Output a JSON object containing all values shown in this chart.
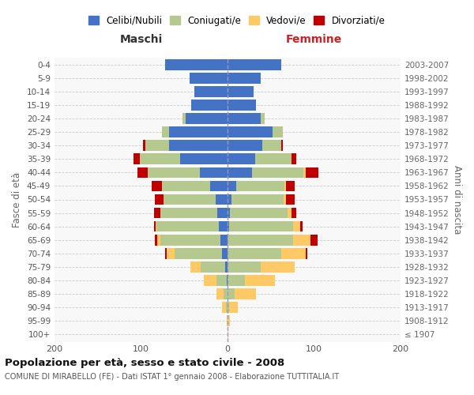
{
  "age_groups": [
    "100+",
    "95-99",
    "90-94",
    "85-89",
    "80-84",
    "75-79",
    "70-74",
    "65-69",
    "60-64",
    "55-59",
    "50-54",
    "45-49",
    "40-44",
    "35-39",
    "30-34",
    "25-29",
    "20-24",
    "15-19",
    "10-14",
    "5-9",
    "0-4"
  ],
  "birth_years": [
    "≤ 1907",
    "1908-1912",
    "1913-1917",
    "1918-1922",
    "1923-1927",
    "1928-1932",
    "1933-1937",
    "1938-1942",
    "1943-1947",
    "1948-1952",
    "1953-1957",
    "1958-1962",
    "1963-1967",
    "1968-1972",
    "1973-1977",
    "1978-1982",
    "1983-1987",
    "1988-1992",
    "1993-1997",
    "1998-2002",
    "2003-2007"
  ],
  "colors": {
    "celibe": "#4472c4",
    "coniugato": "#b5c98e",
    "vedovo": "#ffc966",
    "divorziato": "#c00000"
  },
  "males": {
    "celibe": [
      0,
      0,
      0,
      0,
      1,
      3,
      6,
      8,
      10,
      12,
      14,
      20,
      32,
      55,
      68,
      68,
      48,
      42,
      38,
      44,
      72
    ],
    "coniugato": [
      0,
      0,
      2,
      5,
      12,
      28,
      55,
      70,
      72,
      66,
      60,
      56,
      60,
      46,
      27,
      8,
      4,
      0,
      0,
      0,
      0
    ],
    "vedovo": [
      0,
      1,
      4,
      8,
      14,
      12,
      9,
      3,
      1,
      0,
      0,
      0,
      0,
      0,
      0,
      0,
      0,
      0,
      0,
      0,
      0
    ],
    "divorziato": [
      0,
      0,
      0,
      0,
      0,
      0,
      2,
      3,
      2,
      7,
      10,
      12,
      12,
      8,
      3,
      0,
      0,
      0,
      0,
      0,
      0
    ]
  },
  "females": {
    "nubile": [
      0,
      0,
      0,
      0,
      0,
      0,
      0,
      0,
      2,
      3,
      5,
      10,
      28,
      32,
      40,
      52,
      38,
      33,
      30,
      38,
      62
    ],
    "coniugata": [
      0,
      0,
      2,
      8,
      20,
      38,
      62,
      76,
      74,
      66,
      60,
      56,
      60,
      42,
      22,
      12,
      5,
      0,
      0,
      0,
      0
    ],
    "vedova": [
      1,
      3,
      10,
      25,
      35,
      40,
      28,
      20,
      8,
      5,
      3,
      2,
      2,
      0,
      0,
      0,
      0,
      0,
      0,
      0,
      0
    ],
    "divorziata": [
      0,
      0,
      0,
      0,
      0,
      0,
      2,
      8,
      3,
      5,
      10,
      10,
      15,
      5,
      2,
      0,
      0,
      0,
      0,
      0,
      0
    ]
  },
  "xlim": 200,
  "title": "Popolazione per età, sesso e stato civile - 2008",
  "subtitle": "COMUNE DI MIRABELLO (FE) - Dati ISTAT 1° gennaio 2008 - Elaborazione TUTTITALIA.IT",
  "xlabel_left": "Maschi",
  "xlabel_right": "Femmine",
  "ylabel_left": "Fasce di età",
  "ylabel_right": "Anni di nascita",
  "legend_labels": [
    "Celibi/Nubili",
    "Coniugati/e",
    "Vedovi/e",
    "Divorziati/e"
  ],
  "legend_colors": [
    "#4472c4",
    "#b5c98e",
    "#ffc966",
    "#c00000"
  ]
}
